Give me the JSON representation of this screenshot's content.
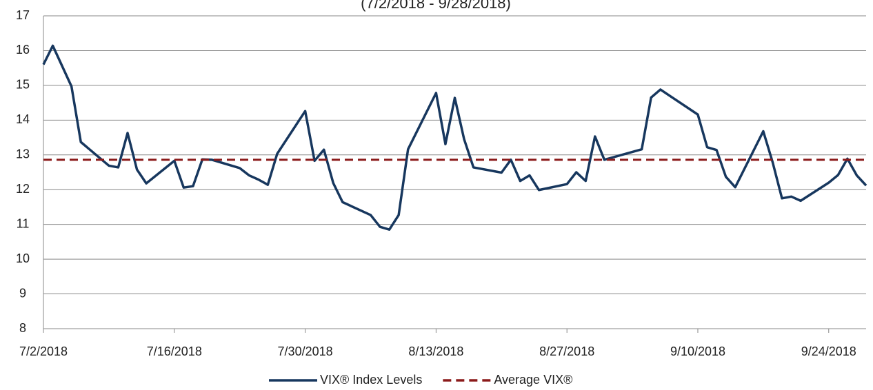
{
  "chart_data": {
    "type": "line",
    "title": "(7/2/2018 - 9/28/2018)",
    "x": [
      "2018-07-02",
      "2018-07-03",
      "2018-07-05",
      "2018-07-06",
      "2018-07-09",
      "2018-07-10",
      "2018-07-11",
      "2018-07-12",
      "2018-07-13",
      "2018-07-16",
      "2018-07-17",
      "2018-07-18",
      "2018-07-19",
      "2018-07-20",
      "2018-07-23",
      "2018-07-24",
      "2018-07-25",
      "2018-07-26",
      "2018-07-27",
      "2018-07-30",
      "2018-07-31",
      "2018-08-01",
      "2018-08-02",
      "2018-08-03",
      "2018-08-06",
      "2018-08-07",
      "2018-08-08",
      "2018-08-09",
      "2018-08-10",
      "2018-08-13",
      "2018-08-14",
      "2018-08-15",
      "2018-08-16",
      "2018-08-17",
      "2018-08-20",
      "2018-08-21",
      "2018-08-22",
      "2018-08-23",
      "2018-08-24",
      "2018-08-27",
      "2018-08-28",
      "2018-08-29",
      "2018-08-30",
      "2018-08-31",
      "2018-09-04",
      "2018-09-05",
      "2018-09-06",
      "2018-09-07",
      "2018-09-10",
      "2018-09-11",
      "2018-09-12",
      "2018-09-13",
      "2018-09-14",
      "2018-09-17",
      "2018-09-18",
      "2018-09-19",
      "2018-09-20",
      "2018-09-21",
      "2018-09-24",
      "2018-09-25",
      "2018-09-26",
      "2018-09-27",
      "2018-09-28"
    ],
    "series": [
      {
        "name": "VIX® Index Levels",
        "color": "#17375e",
        "values": [
          15.6,
          16.14,
          14.97,
          13.37,
          12.69,
          12.64,
          13.63,
          12.58,
          12.18,
          12.83,
          12.06,
          12.1,
          12.87,
          12.86,
          12.62,
          12.41,
          12.29,
          12.14,
          13.03,
          14.26,
          12.83,
          13.15,
          12.19,
          11.64,
          11.27,
          10.93,
          10.85,
          11.27,
          13.16,
          14.78,
          13.31,
          14.64,
          13.45,
          12.64,
          12.49,
          12.86,
          12.25,
          12.41,
          11.99,
          12.16,
          12.5,
          12.25,
          13.53,
          12.86,
          13.16,
          14.65,
          14.88,
          14.7,
          14.16,
          13.22,
          13.14,
          12.37,
          12.07,
          13.68,
          12.79,
          11.75,
          11.8,
          11.68,
          12.2,
          12.42,
          12.89,
          12.41,
          12.12
        ]
      },
      {
        "name": "Average VIX®",
        "color": "#8b1a1a",
        "dashed": true,
        "value": 12.86
      }
    ],
    "xlim": [
      "2018-07-02",
      "2018-09-28"
    ],
    "xticks": [
      {
        "value": "2018-07-02",
        "label": "7/2/2018"
      },
      {
        "value": "2018-07-16",
        "label": "7/16/2018"
      },
      {
        "value": "2018-07-30",
        "label": "7/30/2018"
      },
      {
        "value": "2018-08-13",
        "label": "8/13/2018"
      },
      {
        "value": "2018-08-27",
        "label": "8/27/2018"
      },
      {
        "value": "2018-09-10",
        "label": "9/10/2018"
      },
      {
        "value": "2018-09-24",
        "label": "9/24/2018"
      }
    ],
    "ylim": [
      8,
      17
    ],
    "yticks": [
      8,
      9,
      10,
      11,
      12,
      13,
      14,
      15,
      16,
      17
    ],
    "grid": true,
    "legend": "bottom"
  }
}
